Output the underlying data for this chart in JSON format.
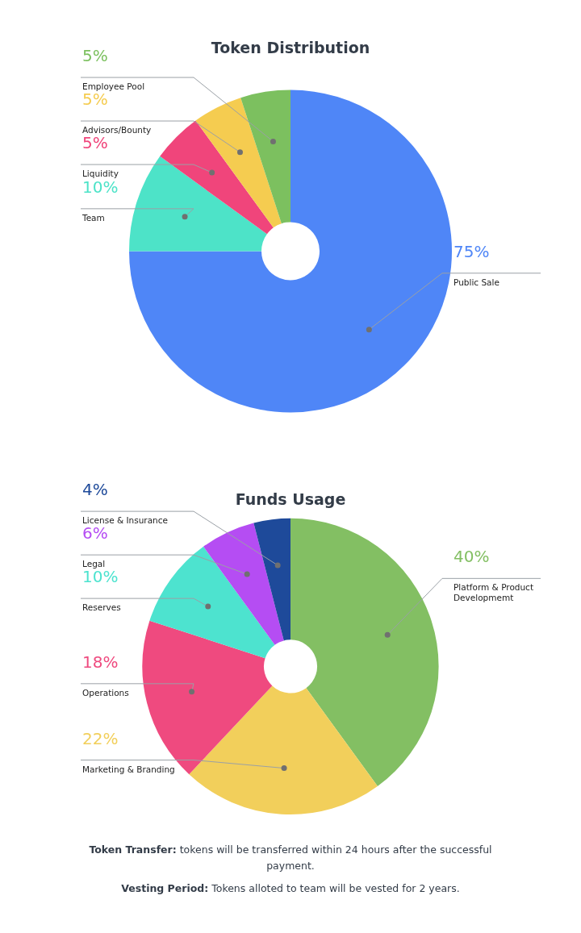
{
  "chart_data": [
    {
      "type": "donut",
      "title": "Token Distribution",
      "categories": [
        "Public Sale",
        "Team",
        "Liquidity",
        "Advisors/Bounty",
        "Employee Pool"
      ],
      "values": [
        75,
        10,
        5,
        5,
        5
      ],
      "value_labels": [
        "75%",
        "10%",
        "5%",
        "5%",
        "5%"
      ],
      "colors": [
        "#4f86f7",
        "#4de3c8",
        "#f0457b",
        "#f5cc50",
        "#7cc05f"
      ],
      "legend": false
    },
    {
      "type": "donut",
      "title": "Funds Usage",
      "categories": [
        "Platform & Product Developmemt",
        "Marketing & Branding",
        "Operations",
        "Reserves",
        "Legal",
        "License & Insurance"
      ],
      "values": [
        40,
        22,
        18,
        10,
        6,
        4
      ],
      "value_labels": [
        "40%",
        "22%",
        "18%",
        "10%",
        "6%",
        "4%"
      ],
      "colors": [
        "#83bf63",
        "#f2cf5b",
        "#ef4a7f",
        "#4de3cf",
        "#b54df3",
        "#1e4a9a"
      ],
      "legend": false,
      "annotations": [
        "Token Transfer: tokens will be transferred within 24 hours after the successful payment.",
        "Vesting Period: Tokens alloted to team will be vested for 2 years."
      ]
    }
  ]
}
